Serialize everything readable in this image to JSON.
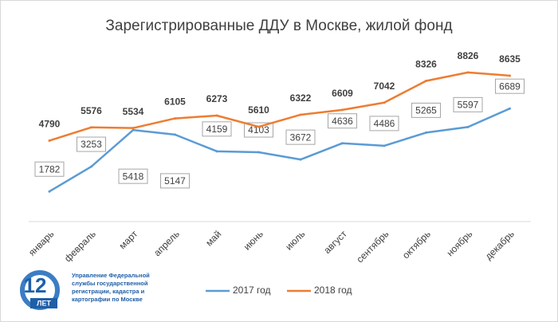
{
  "chart_data": {
    "type": "line",
    "title": "Зарегистрированные ДДУ в Москве, жилой фонд",
    "categories": [
      "январь",
      "февраль",
      "март",
      "апрель",
      "май",
      "июнь",
      "июль",
      "август",
      "сентябрь",
      "октябрь",
      "ноябрь",
      "декабрь"
    ],
    "series": [
      {
        "name": "2017 год",
        "color": "#5b9bd5",
        "values": [
          1782,
          3253,
          5418,
          5147,
          4159,
          4103,
          3672,
          4636,
          4486,
          5265,
          5597,
          6689
        ]
      },
      {
        "name": "2018 год",
        "color": "#ed7d31",
        "values": [
          4790,
          5576,
          5534,
          6105,
          6273,
          5610,
          6322,
          6609,
          7042,
          8326,
          8826,
          8635
        ]
      }
    ],
    "legend": "bottom"
  },
  "logo": {
    "mark": "12",
    "caption": "ЛЕТ",
    "lines": [
      "Управление Федеральной",
      "службы государственной",
      "регистрации, кадастра и",
      "картографии по Москве"
    ]
  }
}
